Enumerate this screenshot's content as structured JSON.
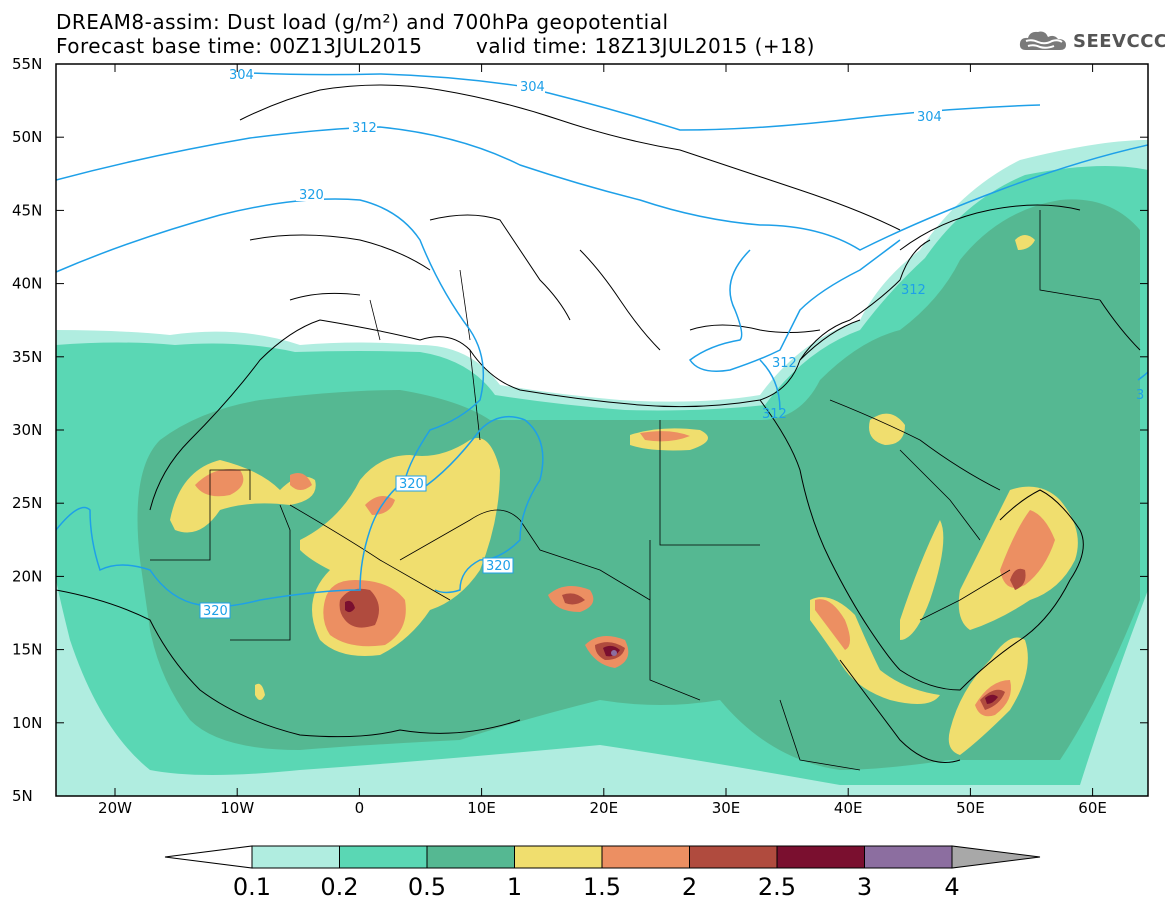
{
  "header": {
    "title_line1": "DREAM8-assim: Dust load (g/m²) and 700hPa geopotential",
    "base_time": "Forecast base time: 00Z13JUL2015",
    "valid_time": "valid time: 18Z13JUL2015 (+18)"
  },
  "logo": {
    "text": "SEEVCCC",
    "icon": "cloud-icon"
  },
  "axes": {
    "lat_labels": [
      "55N",
      "50N",
      "45N",
      "40N",
      "35N",
      "30N",
      "25N",
      "20N",
      "15N",
      "10N",
      "5N"
    ],
    "lon_labels": [
      "20W",
      "10W",
      "0",
      "10E",
      "20E",
      "30E",
      "40E",
      "50E",
      "60E"
    ]
  },
  "contours": {
    "color": "#1ea0e8",
    "labels": [
      "304",
      "304",
      "304",
      "312",
      "320",
      "320",
      "320",
      "320",
      "312",
      "312",
      "312",
      "3"
    ]
  },
  "colorbar": {
    "labels": [
      "0.1",
      "0.2",
      "0.5",
      "1",
      "1.5",
      "2",
      "2.5",
      "3",
      "4"
    ],
    "colors": [
      "#ffffff",
      "#b0ede0",
      "#5ad7b4",
      "#55b892",
      "#f0de6e",
      "#ec8f62",
      "#b04b3e",
      "#7a0f2f",
      "#8c6ea0",
      "#a8a8a8"
    ]
  },
  "dust_colors": {
    "c1": "#b0ede0",
    "c2": "#5ad7b4",
    "c3": "#55b892",
    "c4": "#f0de6e",
    "c5": "#ec8f62",
    "c6": "#b04b3e",
    "c7": "#7a0f2f",
    "c8": "#8c6ea0"
  }
}
